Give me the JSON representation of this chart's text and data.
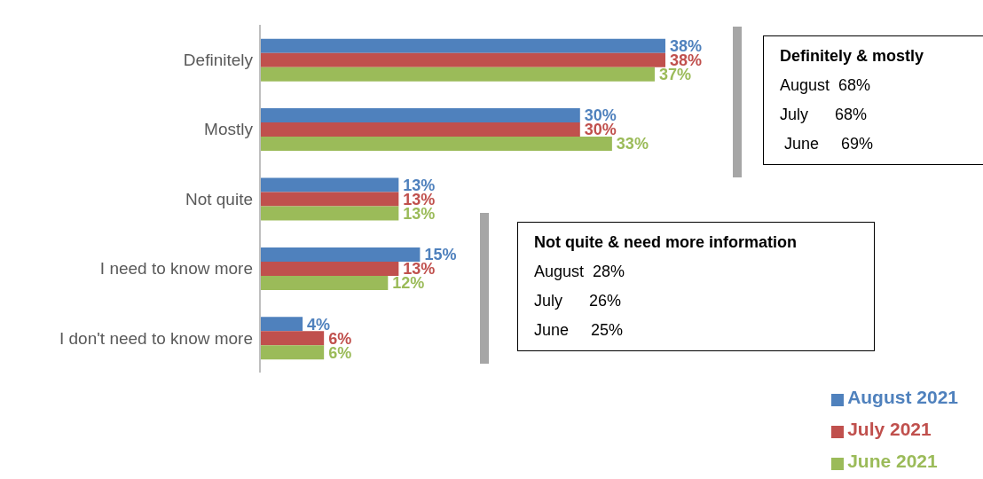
{
  "chart_data": {
    "type": "bar",
    "orientation": "horizontal",
    "categories": [
      "Definitely",
      "Mostly",
      "Not quite",
      "I need to know more",
      "I don't need to know more"
    ],
    "series": [
      {
        "name": "August 2021",
        "color": "#4f81bd",
        "values": [
          38,
          30,
          13,
          15,
          4
        ],
        "value_labels": [
          "38%",
          "30%",
          "13%",
          "15%",
          "4%"
        ]
      },
      {
        "name": "July 2021",
        "color": "#c0504d",
        "values": [
          38,
          30,
          13,
          13,
          6
        ],
        "value_labels": [
          "38%",
          "30%",
          "13%",
          "13%",
          "6%"
        ]
      },
      {
        "name": "June 2021",
        "color": "#9bbb59",
        "values": [
          37,
          33,
          13,
          12,
          6
        ],
        "value_labels": [
          "37%",
          "33%",
          "13%",
          "12%",
          "6%"
        ]
      }
    ],
    "legend": "bottom right",
    "annotations": [
      "Definitely & mostly\nAugust  68%\nJuly      68%\n June     69%",
      "Not quite & need more information\nAugust  28%\nJuly      26%\nJune     25%"
    ]
  }
}
